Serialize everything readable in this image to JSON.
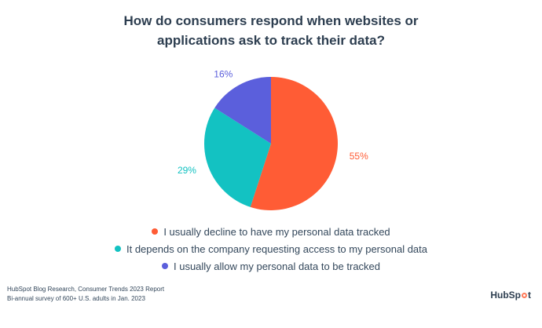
{
  "title_lines": [
    "How do consumers respond when websites or",
    "applications ask to track their data?"
  ],
  "chart_data": {
    "type": "pie",
    "start": "top",
    "direction": "clockwise",
    "slices": [
      {
        "label": "I usually decline to have my personal data tracked",
        "value": 55,
        "value_label": "55%",
        "color": "#ff5c35"
      },
      {
        "label": "It depends on the company requesting access to my personal data",
        "value": 29,
        "value_label": "29%",
        "color": "#13c2c2"
      },
      {
        "label": "I usually allow my personal data to be tracked",
        "value": 16,
        "value_label": "16%",
        "color": "#5b5fdc"
      }
    ],
    "legend_position": "bottom"
  },
  "footer": {
    "source": "HubSpot Blog Research, Consumer Trends 2023 Report",
    "note": "Bi-annual survey of 600+ U.S. adults in Jan. 2023"
  },
  "brand": {
    "text_before": "HubSp",
    "text_after": "t",
    "accent_color": "#ff7a59"
  }
}
